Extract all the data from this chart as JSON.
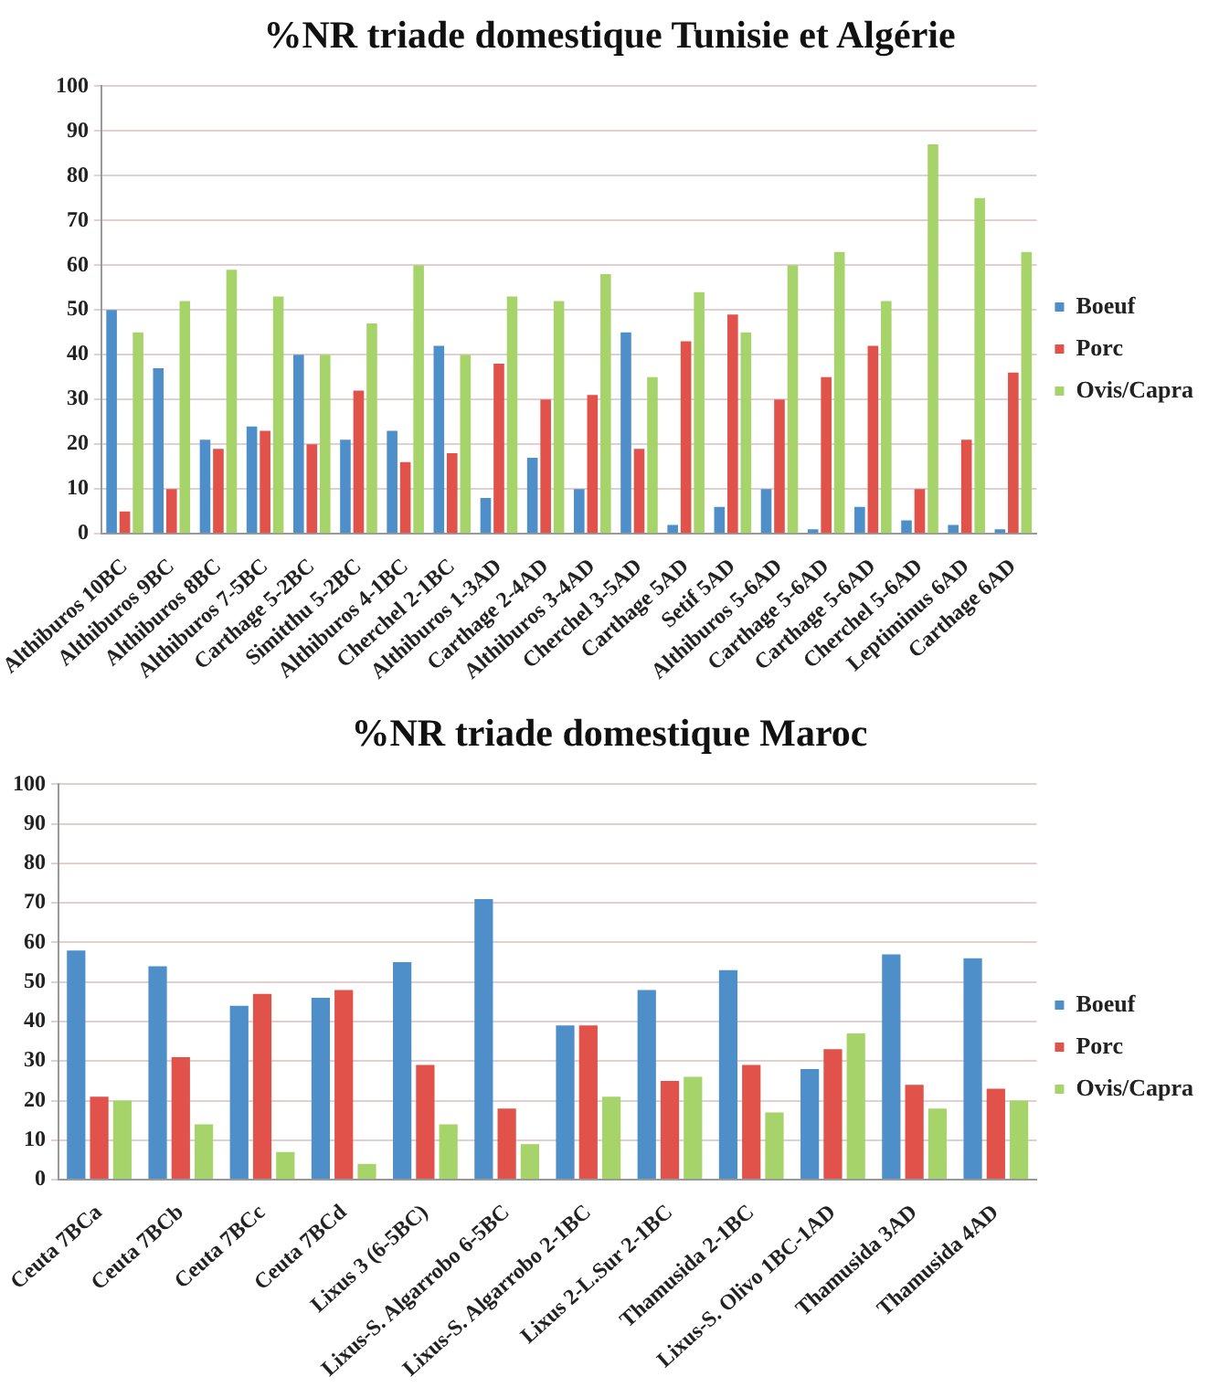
{
  "chart_data": [
    {
      "type": "bar",
      "title": "%NR triade domestique Tunisie et Algérie",
      "categories": [
        "Althiburos 10BC",
        "Althiburos 9BC",
        "Althiburos 8BC",
        "Althiburos 7-5BC",
        "Carthage 5-2BC",
        "Simitthu 5-2BC",
        "Althiburos 4-1BC",
        "Cherchel 2-1BC",
        "Althiburos 1-3AD",
        "Carthage 2-4AD",
        "Althiburos 3-4AD",
        "Cherchel 3-5AD",
        "Carthage 5AD",
        "Setif 5AD",
        "Althiburos 5-6AD",
        "Carthage 5-6AD",
        "Carthage 5-6AD",
        "Cherchel 5-6AD",
        "Leptiminus 6AD",
        "Carthage 6AD"
      ],
      "series": [
        {
          "name": "Boeuf",
          "color": "#4f8fc9",
          "values": [
            50,
            37,
            21,
            24,
            40,
            21,
            23,
            42,
            8,
            17,
            10,
            45,
            2,
            6,
            10,
            1,
            6,
            3,
            2,
            1
          ]
        },
        {
          "name": "Porc",
          "color": "#e0524a",
          "values": [
            5,
            10,
            19,
            23,
            20,
            32,
            16,
            18,
            38,
            30,
            31,
            19,
            43,
            49,
            30,
            35,
            42,
            10,
            21,
            36
          ]
        },
        {
          "name": "Ovis/Capra",
          "color": "#a6d46a",
          "values": [
            45,
            52,
            59,
            53,
            40,
            47,
            60,
            40,
            53,
            52,
            58,
            35,
            54,
            45,
            60,
            63,
            52,
            87,
            75,
            63
          ]
        }
      ],
      "ylim": [
        0,
        100
      ],
      "yticks": [
        0,
        10,
        20,
        30,
        40,
        50,
        60,
        70,
        80,
        90,
        100
      ],
      "grid": "y",
      "legend": "right"
    },
    {
      "type": "bar",
      "title": "%NR triade domestique Maroc",
      "categories": [
        "Ceuta 7BCa",
        "Ceuta 7BCb",
        "Ceuta 7BCc",
        "Ceuta 7BCd",
        "Lixus 3 (6-5BC)",
        "Lixus-S. Algarrobo 6-5BC",
        "Lixus-S. Algarrobo 2-1BC",
        "Lixus 2-L.Sur 2-1BC",
        "Thamusida 2-1BC",
        "Lixus-S. Olivo 1BC-1AD",
        "Thamusida 3AD",
        "Thamusida 4AD"
      ],
      "series": [
        {
          "name": "Boeuf",
          "color": "#4f8fc9",
          "values": [
            58,
            54,
            44,
            46,
            55,
            71,
            39,
            48,
            53,
            28,
            57,
            56
          ]
        },
        {
          "name": "Porc",
          "color": "#e0524a",
          "values": [
            21,
            31,
            47,
            48,
            29,
            18,
            39,
            25,
            29,
            33,
            24,
            23
          ]
        },
        {
          "name": "Ovis/Capra",
          "color": "#a6d46a",
          "values": [
            20,
            14,
            7,
            4,
            14,
            9,
            21,
            26,
            17,
            37,
            18,
            20
          ]
        }
      ],
      "ylim": [
        0,
        100
      ],
      "yticks": [
        0,
        10,
        20,
        30,
        40,
        50,
        60,
        70,
        80,
        90,
        100
      ],
      "grid": "y",
      "legend": "right"
    }
  ]
}
